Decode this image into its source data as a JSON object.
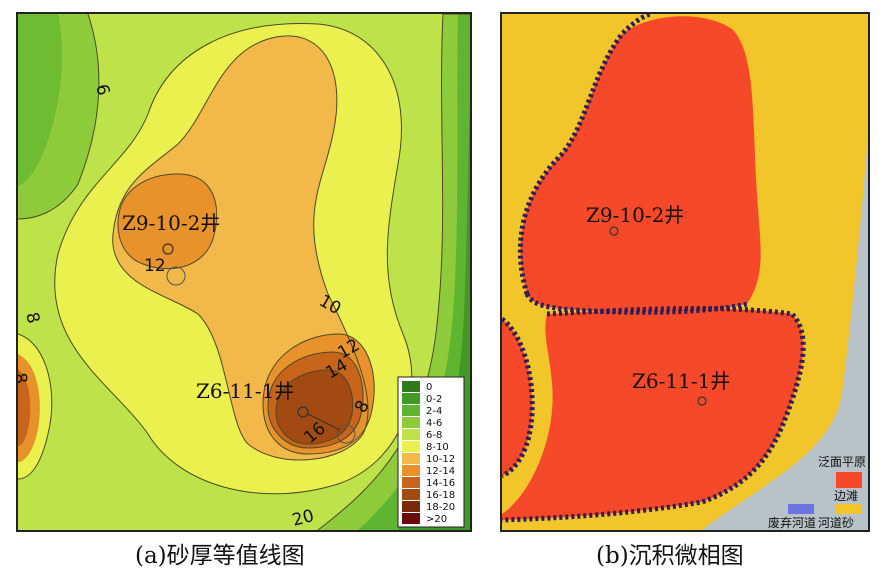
{
  "panel_a": {
    "caption": "(a)砂厚等值线图",
    "wells": [
      {
        "name": "Z9-10-2井"
      },
      {
        "name": "Z6-11-1井"
      }
    ],
    "contour_labels": [
      "6",
      "8",
      "10",
      "12",
      "12",
      "14",
      "16",
      "8",
      "8",
      "20"
    ],
    "legend": [
      {
        "label": "0",
        "color": "#2f7a1c"
      },
      {
        "label": "0-2",
        "color": "#3f9a26"
      },
      {
        "label": "2-4",
        "color": "#5fb530"
      },
      {
        "label": "4-6",
        "color": "#8dcb3a"
      },
      {
        "label": "6-8",
        "color": "#bde24a"
      },
      {
        "label": "8-10",
        "color": "#eaf04e"
      },
      {
        "label": "10-12",
        "color": "#f2b84a"
      },
      {
        "label": "12-14",
        "color": "#e8922c"
      },
      {
        "label": "14-16",
        "color": "#c8651a"
      },
      {
        "label": "16-18",
        "color": "#a24a12"
      },
      {
        "label": "18-20",
        "color": "#7a2a0a"
      },
      {
        "label": ">20",
        "color": "#6a0a0a"
      }
    ]
  },
  "panel_b": {
    "caption": "(b)沉积微相图",
    "wells": [
      {
        "name": "Z9-10-2井"
      },
      {
        "name": "Z6-11-1井"
      }
    ],
    "legend": [
      {
        "label": "泛面平原",
        "color": "#b7c3c7"
      },
      {
        "label": "边滩",
        "color": "#f5492a"
      },
      {
        "label": "废弃河道",
        "color": "#6b74e0"
      },
      {
        "label": "河道砂",
        "color": "#f2c62a"
      }
    ]
  }
}
